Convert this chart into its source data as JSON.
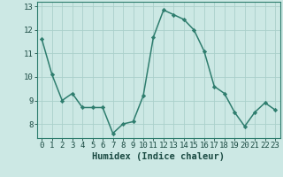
{
  "x": [
    0,
    1,
    2,
    3,
    4,
    5,
    6,
    7,
    8,
    9,
    10,
    11,
    12,
    13,
    14,
    15,
    16,
    17,
    18,
    19,
    20,
    21,
    22,
    23
  ],
  "y": [
    11.6,
    10.1,
    9.0,
    9.3,
    8.7,
    8.7,
    8.7,
    7.6,
    8.0,
    8.1,
    9.2,
    11.7,
    12.85,
    12.65,
    12.45,
    12.0,
    11.1,
    9.6,
    9.3,
    8.5,
    7.9,
    8.5,
    8.9,
    8.6
  ],
  "line_color": "#2e7d6e",
  "marker": "D",
  "marker_size": 2.2,
  "bg_color": "#cce8e4",
  "plot_bg_color": "#cce8e4",
  "grid_color": "#aad0ca",
  "xlabel": "Humidex (Indice chaleur)",
  "xlabel_fontsize": 7.5,
  "ylim": [
    7.4,
    13.2
  ],
  "xlim": [
    -0.5,
    23.5
  ],
  "yticks": [
    8,
    9,
    10,
    11,
    12,
    13
  ],
  "xticks": [
    0,
    1,
    2,
    3,
    4,
    5,
    6,
    7,
    8,
    9,
    10,
    11,
    12,
    13,
    14,
    15,
    16,
    17,
    18,
    19,
    20,
    21,
    22,
    23
  ],
  "tick_fontsize": 6.5,
  "line_width": 1.1,
  "spine_color": "#2e7d6e"
}
